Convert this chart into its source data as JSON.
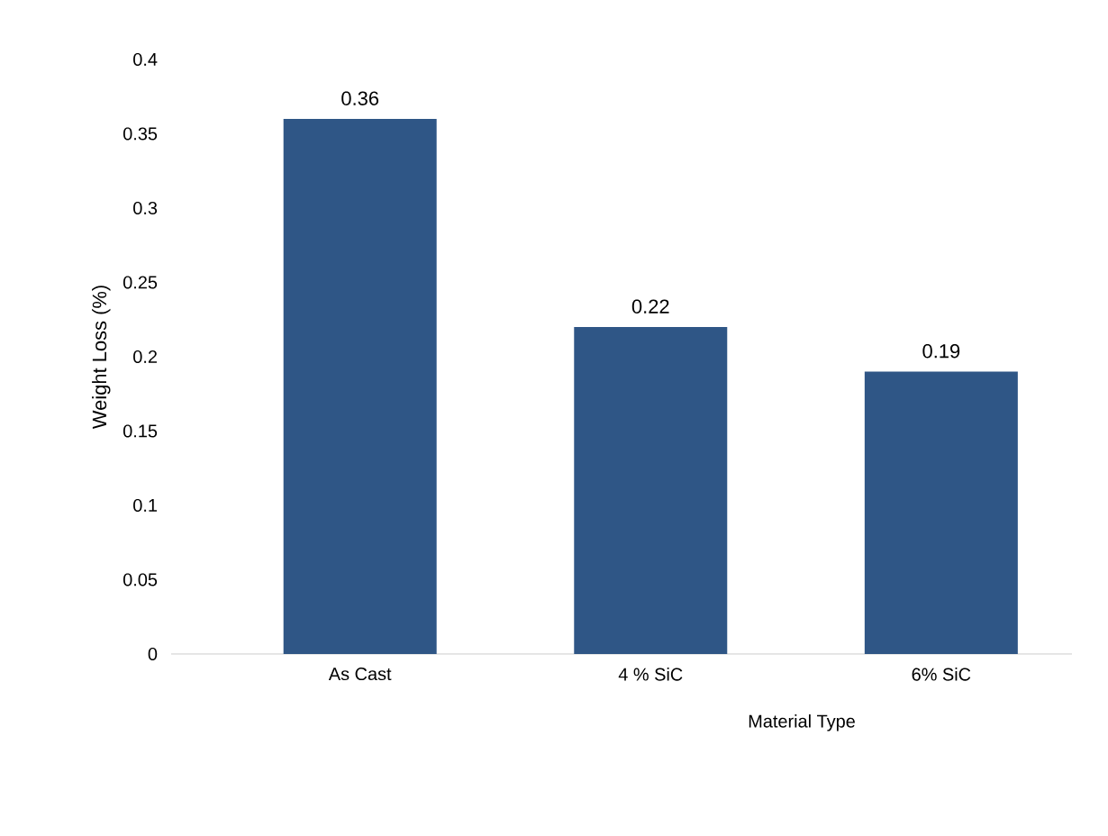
{
  "chart_data": {
    "type": "bar",
    "xlabel": "Material Type",
    "ylabel": "Weight Loss (%)",
    "categories": [
      "As Cast",
      "4 % SiC",
      "6% SiC"
    ],
    "values": [
      0.36,
      0.22,
      0.19
    ],
    "color": "#2f5686",
    "ylim": [
      0,
      0.4
    ],
    "yticks": [
      0,
      0.05,
      0.1,
      0.15,
      0.2,
      0.25,
      0.3,
      0.35,
      0.4
    ],
    "data_labels": true
  }
}
